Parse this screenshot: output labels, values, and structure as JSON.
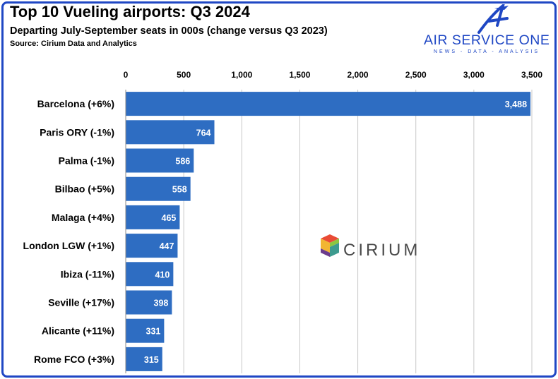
{
  "header": {
    "title": "Top 10 Vueling airports: Q3 2024",
    "subtitle": "Departing July-September seats in 000s (change versus Q3 2023)",
    "source": "Source: Cirium Data and Analytics"
  },
  "logo": {
    "name": "AIR SERVICE ONE",
    "tagline": "NEWS - DATA - ANALYSIS",
    "color": "#1f47c4"
  },
  "watermark": {
    "text": "CIRIUM"
  },
  "chart_data": {
    "type": "bar",
    "orientation": "horizontal",
    "categories": [
      "Barcelona (+6%)",
      "Paris ORY (-1%)",
      "Palma (-1%)",
      "Bilbao (+5%)",
      "Malaga (+4%)",
      "London LGW (+1%)",
      "Ibiza (-11%)",
      "Seville (+17%)",
      "Alicante (+11%)",
      "Rome FCO (+3%)"
    ],
    "values": [
      3488,
      764,
      586,
      558,
      465,
      447,
      410,
      398,
      331,
      315
    ],
    "value_labels": [
      "3,488",
      "764",
      "586",
      "558",
      "465",
      "447",
      "410",
      "398",
      "331",
      "315"
    ],
    "xlim": [
      0,
      3500
    ],
    "x_ticks": [
      0,
      500,
      1000,
      1500,
      2000,
      2500,
      3000,
      3500
    ],
    "x_tick_labels": [
      "0",
      "500",
      "1,000",
      "1,500",
      "2,000",
      "2,500",
      "3,000",
      "3,500"
    ],
    "axis_position": "top",
    "grid": true,
    "bar_color": "#2e6dc2",
    "title": "Top 10 Vueling airports: Q3 2024",
    "xlabel": "",
    "ylabel": ""
  }
}
